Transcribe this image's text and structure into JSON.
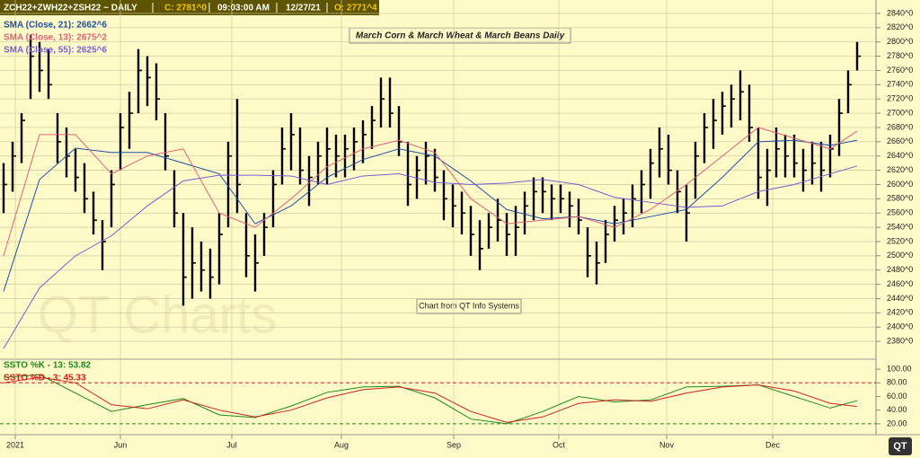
{
  "chart_data": [
    {
      "type": "ohlc",
      "header": [
        "ZCH22+ZWH22+ZSH22 ~ DAILY",
        "C: 2781^0",
        "09:03:00 AM",
        "12/27/21",
        "O: 2771^4"
      ],
      "title": "March Corn & March Wheat & March Beans Daily",
      "annotation": "Chart from QT Info Systems",
      "watermark": "QT Charts",
      "logo": "QT",
      "ylim": [
        2360,
        2850
      ],
      "yticks": [
        {
          "value": 2380,
          "label": "2380^0"
        },
        {
          "value": 2400,
          "label": "2400^0"
        },
        {
          "value": 2420,
          "label": "2420^0"
        },
        {
          "value": 2440,
          "label": "2440^0"
        },
        {
          "value": 2460,
          "label": "2460^0"
        },
        {
          "value": 2480,
          "label": "2480^0"
        },
        {
          "value": 2500,
          "label": "2500^0"
        },
        {
          "value": 2520,
          "label": "2520^0"
        },
        {
          "value": 2540,
          "label": "2540^0"
        },
        {
          "value": 2560,
          "label": "2560^0"
        },
        {
          "value": 2580,
          "label": "2580^0"
        },
        {
          "value": 2600,
          "label": "2600^0"
        },
        {
          "value": 2620,
          "label": "2620^0"
        },
        {
          "value": 2640,
          "label": "2640^0"
        },
        {
          "value": 2660,
          "label": "2660^0"
        },
        {
          "value": 2680,
          "label": "2680^0"
        },
        {
          "value": 2700,
          "label": "2700^0"
        },
        {
          "value": 2720,
          "label": "2720^0"
        },
        {
          "value": 2740,
          "label": "2740^0"
        },
        {
          "value": 2760,
          "label": "2760^0"
        },
        {
          "value": 2780,
          "label": "2780^0"
        },
        {
          "value": 2800,
          "label": "2800^0"
        },
        {
          "value": 2820,
          "label": "2820^0"
        },
        {
          "value": 2840,
          "label": "2840^0"
        }
      ],
      "grid": true,
      "bar_color": "#000000",
      "months": [
        {
          "label": "2021",
          "index": 1.3
        },
        {
          "label": "Jun",
          "index": 13
        },
        {
          "label": "Jul",
          "index": 25.4
        },
        {
          "label": "Aug",
          "index": 37.6
        },
        {
          "label": "Sep",
          "index": 50.1
        },
        {
          "label": "Oct",
          "index": 61.8
        },
        {
          "label": "Nov",
          "index": 73.8
        },
        {
          "label": "Dec",
          "index": 85.6
        }
      ],
      "high": [
        2630,
        2660,
        2700,
        2810,
        2800,
        2790,
        2700,
        2680,
        2650,
        2630,
        2590,
        2550,
        2620,
        2700,
        2730,
        2790,
        2780,
        2770,
        2700,
        2620,
        2560,
        2540,
        2520,
        2510,
        2560,
        2660,
        2720,
        2560,
        2530,
        2560,
        2620,
        2680,
        2700,
        2680,
        2640,
        2660,
        2680,
        2670,
        2670,
        2680,
        2690,
        2710,
        2750,
        2750,
        2710,
        2660,
        2640,
        2660,
        2650,
        2620,
        2600,
        2590,
        2570,
        2550,
        2560,
        2580,
        2560,
        2570,
        2590,
        2610,
        2610,
        2600,
        2600,
        2590,
        2580,
        2540,
        2520,
        2550,
        2570,
        2580,
        2600,
        2620,
        2650,
        2680,
        2670,
        2620,
        2600,
        2660,
        2700,
        2720,
        2730,
        2740,
        2760,
        2740,
        2680,
        2650,
        2680,
        2670,
        2670,
        2650,
        2660,
        2660,
        2670,
        2720,
        2760,
        2800
      ],
      "low": [
        2560,
        2590,
        2630,
        2720,
        2730,
        2720,
        2630,
        2610,
        2590,
        2560,
        2530,
        2480,
        2540,
        2620,
        2650,
        2700,
        2710,
        2690,
        2620,
        2540,
        2430,
        2440,
        2450,
        2440,
        2460,
        2540,
        2560,
        2470,
        2450,
        2500,
        2540,
        2600,
        2620,
        2600,
        2570,
        2600,
        2600,
        2610,
        2610,
        2620,
        2630,
        2650,
        2680,
        2680,
        2640,
        2570,
        2580,
        2600,
        2590,
        2550,
        2540,
        2530,
        2500,
        2480,
        2510,
        2520,
        2500,
        2500,
        2530,
        2550,
        2560,
        2550,
        2560,
        2540,
        2530,
        2470,
        2460,
        2490,
        2520,
        2530,
        2540,
        2560,
        2580,
        2610,
        2600,
        2560,
        2520,
        2580,
        2630,
        2650,
        2670,
        2680,
        2690,
        2660,
        2580,
        2570,
        2610,
        2610,
        2610,
        2590,
        2600,
        2590,
        2610,
        2640,
        2700,
        2760
      ],
      "close": [
        2600,
        2640,
        2690,
        2780,
        2760,
        2740,
        2660,
        2640,
        2610,
        2580,
        2550,
        2520,
        2600,
        2680,
        2700,
        2760,
        2750,
        2720,
        2640,
        2560,
        2470,
        2490,
        2480,
        2470,
        2530,
        2640,
        2600,
        2500,
        2490,
        2540,
        2600,
        2650,
        2670,
        2620,
        2610,
        2640,
        2650,
        2640,
        2650,
        2660,
        2670,
        2690,
        2720,
        2700,
        2660,
        2600,
        2620,
        2640,
        2610,
        2580,
        2570,
        2560,
        2530,
        2510,
        2540,
        2550,
        2530,
        2540,
        2570,
        2590,
        2590,
        2580,
        2580,
        2570,
        2550,
        2500,
        2490,
        2530,
        2550,
        2560,
        2580,
        2600,
        2630,
        2650,
        2620,
        2590,
        2560,
        2640,
        2680,
        2690,
        2710,
        2720,
        2730,
        2680,
        2610,
        2620,
        2650,
        2640,
        2630,
        2620,
        2630,
        2620,
        2650,
        2700,
        2740,
        2780
      ],
      "series": [
        {
          "name": "SMA (Close, 21): 2662^6",
          "color": "#1f4fa8",
          "x": [
            0,
            4,
            8,
            12,
            16,
            20,
            24,
            28,
            32,
            36,
            40,
            44,
            48,
            52,
            56,
            60,
            64,
            68,
            72,
            76,
            80,
            84,
            88,
            92,
            95
          ],
          "values": [
            2450,
            2607,
            2651,
            2645,
            2645,
            2630,
            2615,
            2545,
            2570,
            2610,
            2635,
            2650,
            2640,
            2605,
            2565,
            2552,
            2555,
            2545,
            2555,
            2565,
            2610,
            2660,
            2662,
            2655,
            2662
          ]
        },
        {
          "name": "SMA (Close, 13): 2675^2",
          "color": "#e0607a",
          "x": [
            0,
            4,
            8,
            12,
            16,
            20,
            24,
            28,
            32,
            36,
            40,
            44,
            48,
            52,
            56,
            60,
            64,
            68,
            72,
            76,
            80,
            84,
            88,
            92,
            95
          ],
          "values": [
            2500,
            2670,
            2670,
            2615,
            2640,
            2650,
            2560,
            2540,
            2580,
            2625,
            2650,
            2662,
            2645,
            2580,
            2545,
            2550,
            2555,
            2540,
            2565,
            2600,
            2640,
            2680,
            2665,
            2650,
            2675
          ]
        },
        {
          "name": "SMA (Close, 55): 2625^6",
          "color": "#7a5cd6",
          "x": [
            0,
            4,
            8,
            12,
            16,
            20,
            24,
            28,
            32,
            36,
            40,
            44,
            48,
            52,
            56,
            60,
            64,
            68,
            72,
            76,
            80,
            84,
            88,
            92,
            95
          ],
          "values": [
            2370,
            2455,
            2500,
            2528,
            2570,
            2605,
            2613,
            2613,
            2612,
            2600,
            2612,
            2615,
            2603,
            2600,
            2602,
            2607,
            2600,
            2582,
            2575,
            2568,
            2570,
            2590,
            2600,
            2615,
            2626
          ]
        }
      ]
    },
    {
      "type": "line",
      "ylim": [
        8,
        112
      ],
      "yticks": [
        {
          "value": 20,
          "label": "20.00"
        },
        {
          "value": 40,
          "label": "40.00"
        },
        {
          "value": 60,
          "label": "60.00"
        },
        {
          "value": 80,
          "label": "80.00"
        },
        {
          "value": 100,
          "label": "100.00"
        }
      ],
      "levels": [
        {
          "value": 80,
          "color": "#d02020"
        },
        {
          "value": 20,
          "color": "#1c8a1c"
        }
      ],
      "series": [
        {
          "name": "SSTO %K - 13: 53.82",
          "color": "#1c8a1c",
          "x": [
            0,
            4,
            8,
            12,
            16,
            20,
            24,
            28,
            32,
            36,
            40,
            44,
            48,
            52,
            56,
            60,
            64,
            68,
            72,
            76,
            80,
            84,
            88,
            92,
            95
          ],
          "values": [
            88,
            92,
            65,
            38,
            48,
            57,
            33,
            29,
            46,
            66,
            74,
            75,
            58,
            27,
            20,
            38,
            60,
            52,
            55,
            74,
            75,
            77,
            60,
            43,
            53.82
          ]
        },
        {
          "name": "SSTO %D - 3: 45.33",
          "color": "#d02020",
          "x": [
            0,
            4,
            8,
            12,
            16,
            20,
            24,
            28,
            32,
            36,
            40,
            44,
            48,
            52,
            56,
            60,
            64,
            68,
            72,
            76,
            80,
            84,
            88,
            92,
            95
          ],
          "values": [
            80,
            88,
            80,
            48,
            42,
            55,
            40,
            30,
            40,
            58,
            70,
            74,
            65,
            38,
            22,
            30,
            50,
            55,
            53,
            65,
            74,
            77,
            68,
            50,
            45.33
          ]
        }
      ]
    }
  ]
}
